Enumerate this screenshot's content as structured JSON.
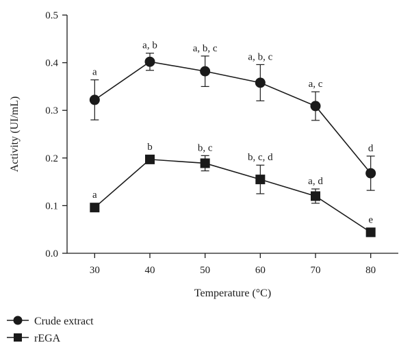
{
  "chart_data": {
    "type": "line",
    "xlabel": "Temperature (°C)",
    "ylabel": "Activity (UI/mL)",
    "x": [
      30,
      40,
      50,
      60,
      70,
      80
    ],
    "x_ticks": [
      "30",
      "40",
      "50",
      "60",
      "70",
      "80"
    ],
    "xlim": [
      25,
      85
    ],
    "ylim": [
      0,
      0.5
    ],
    "y_ticks": [
      "0.0",
      "0.1",
      "0.2",
      "0.3",
      "0.4",
      "0.5"
    ],
    "grid": false,
    "legend_position": "bottom-left",
    "series": [
      {
        "name": "Crude extract",
        "marker": "circle",
        "values": [
          0.322,
          0.402,
          0.382,
          0.358,
          0.309,
          0.168
        ],
        "error": [
          0.042,
          0.018,
          0.032,
          0.038,
          0.03,
          0.036
        ],
        "labels": [
          "a",
          "a, b",
          "a, b, c",
          "a, b, c",
          "a, c",
          "d"
        ]
      },
      {
        "name": "rEGA",
        "marker": "square",
        "values": [
          0.096,
          0.197,
          0.189,
          0.155,
          0.12,
          0.044
        ],
        "error": [
          0.0,
          0.0,
          0.016,
          0.03,
          0.015,
          0.0
        ],
        "labels": [
          "a",
          "b",
          "b, c",
          "b, c, d",
          "a, d",
          "e"
        ]
      }
    ]
  }
}
